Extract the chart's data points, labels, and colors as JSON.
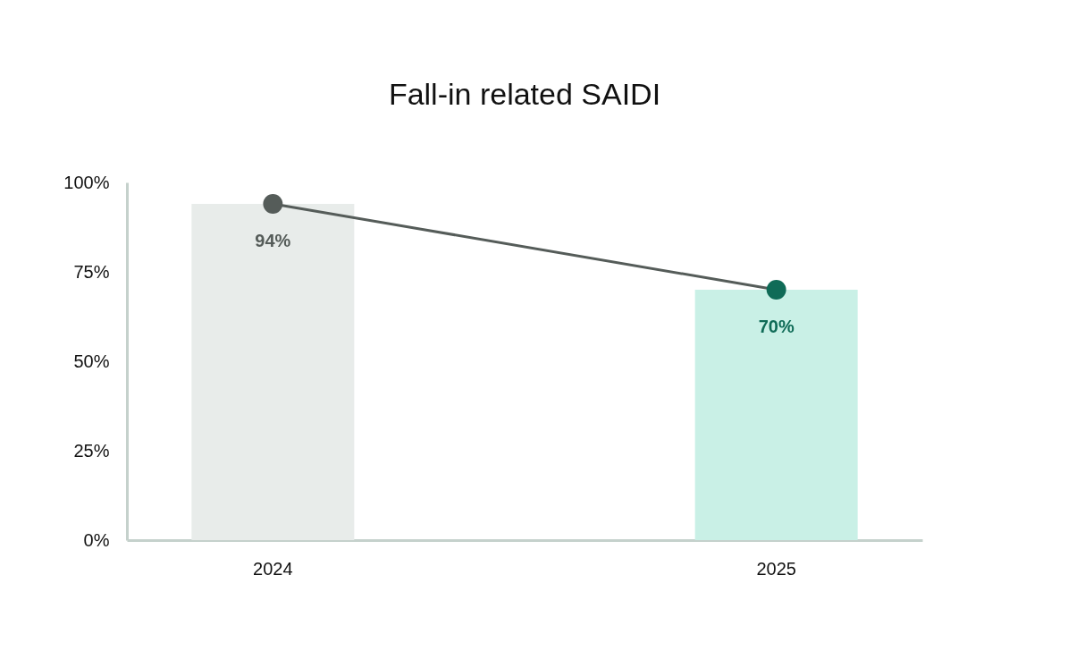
{
  "chart_data": {
    "type": "bar",
    "title": "Fall-in related SAIDI",
    "categories": [
      "2024",
      "2025"
    ],
    "series": [
      {
        "colors": [
          "#e8ecea",
          "#c9f0e6"
        ],
        "values": [
          94,
          70
        ]
      },
      {
        "type": "line",
        "color": "#555c59",
        "colors": [
          "#555c59",
          "#0f6b57"
        ],
        "values": [
          94,
          70
        ],
        "value_labels": [
          "94%",
          "70%"
        ]
      }
    ],
    "ylim": [
      0,
      100
    ],
    "yticks": [
      {
        "value": 0,
        "label": "0%"
      },
      {
        "value": 25,
        "label": "25%"
      },
      {
        "value": 50,
        "label": "50%"
      },
      {
        "value": 75,
        "label": "75%"
      },
      {
        "value": 100,
        "label": "100%"
      }
    ],
    "grid": false,
    "marker": "circle",
    "line_style": "solid"
  }
}
